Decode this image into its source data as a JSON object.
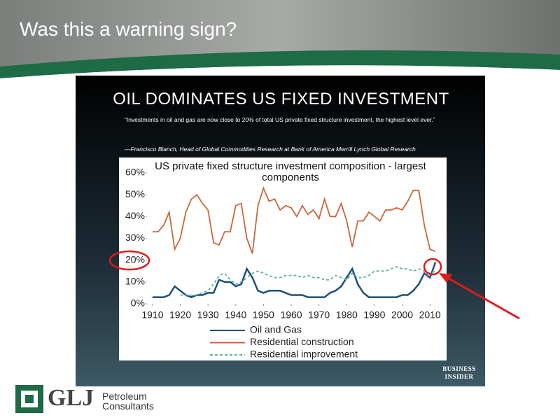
{
  "slide_title": "Was this a warning sign?",
  "panel": {
    "heading": "OIL DOMINATES US FIXED INVESTMENT",
    "quote": "“Investments in oil and gas are now close to 20% of total US private fixed structure investment, the highest level ever.”",
    "attribution": "—Francisco Blanch, Head of Global Commodities Research at Bank of America Merrill Lynch Global Research",
    "source_logo": [
      "BUSINESS",
      "INSIDER"
    ]
  },
  "logo": {
    "mark": "GLJ",
    "name": [
      "Petroleum",
      "Consultants"
    ]
  },
  "chart_data": {
    "type": "line",
    "title": "US private fixed structure investment  composition - largest components",
    "x": [
      1910,
      1912,
      1914,
      1916,
      1918,
      1920,
      1922,
      1924,
      1926,
      1928,
      1930,
      1932,
      1934,
      1936,
      1938,
      1940,
      1942,
      1944,
      1946,
      1948,
      1950,
      1952,
      1954,
      1956,
      1958,
      1960,
      1962,
      1964,
      1966,
      1968,
      1970,
      1972,
      1974,
      1976,
      1978,
      1980,
      1982,
      1984,
      1986,
      1988,
      1990,
      1992,
      1994,
      1996,
      1998,
      2000,
      2002,
      2004,
      2006,
      2008,
      2010,
      2012
    ],
    "xlim": [
      1908,
      2014
    ],
    "xticks": [
      1910,
      1920,
      1930,
      1940,
      1950,
      1960,
      1970,
      1980,
      1990,
      2000,
      2010
    ],
    "ylim": [
      0,
      60
    ],
    "yticks": [
      {
        "value": 0,
        "label": "0%"
      },
      {
        "value": 10,
        "label": "10%"
      },
      {
        "value": 20,
        "label": "20%"
      },
      {
        "value": 30,
        "label": "30%"
      },
      {
        "value": 40,
        "label": "40%"
      },
      {
        "value": 50,
        "label": "50%"
      },
      {
        "value": 60,
        "label": "60%"
      }
    ],
    "grid": false,
    "legend": "bottom",
    "series": [
      {
        "name": "Oil and Gas",
        "color": "#1f4e79",
        "dashed": false,
        "values": [
          3,
          3,
          3,
          4,
          8,
          6,
          4,
          3,
          4,
          4,
          5,
          5,
          11,
          10,
          10,
          8,
          9,
          16,
          12,
          6,
          5,
          6,
          6,
          6,
          5,
          4,
          4,
          4,
          3,
          3,
          3,
          3,
          5,
          6,
          8,
          12,
          16,
          9,
          5,
          3,
          3,
          3,
          3,
          3,
          3,
          4,
          4,
          6,
          9,
          14,
          12,
          19
        ]
      },
      {
        "name": "Residential construction",
        "color": "#c8673a",
        "dashed": false,
        "values": [
          33,
          33,
          36,
          42,
          25,
          30,
          42,
          48,
          50,
          46,
          43,
          28,
          27,
          33,
          33,
          45,
          46,
          30,
          23,
          45,
          53,
          47,
          48,
          43,
          45,
          44,
          40,
          45,
          41,
          43,
          39,
          48,
          40,
          40,
          46,
          38,
          26,
          38,
          38,
          42,
          40,
          38,
          43,
          43,
          44,
          43,
          47,
          52,
          52,
          36,
          25,
          24
        ]
      },
      {
        "name": "Residential improvement",
        "color": "#5bb5a0",
        "dashed": true,
        "values": [
          null,
          null,
          null,
          null,
          null,
          4,
          4,
          4,
          4,
          5,
          6,
          9,
          13,
          14,
          11,
          9,
          10,
          12,
          14,
          15,
          14,
          13,
          12,
          12,
          13,
          13,
          13,
          12,
          13,
          12,
          12,
          11,
          11,
          13,
          12,
          11,
          14,
          12,
          12,
          13,
          15,
          15,
          15,
          16,
          17,
          16,
          16,
          15,
          16,
          15,
          14,
          15
        ]
      }
    ]
  }
}
